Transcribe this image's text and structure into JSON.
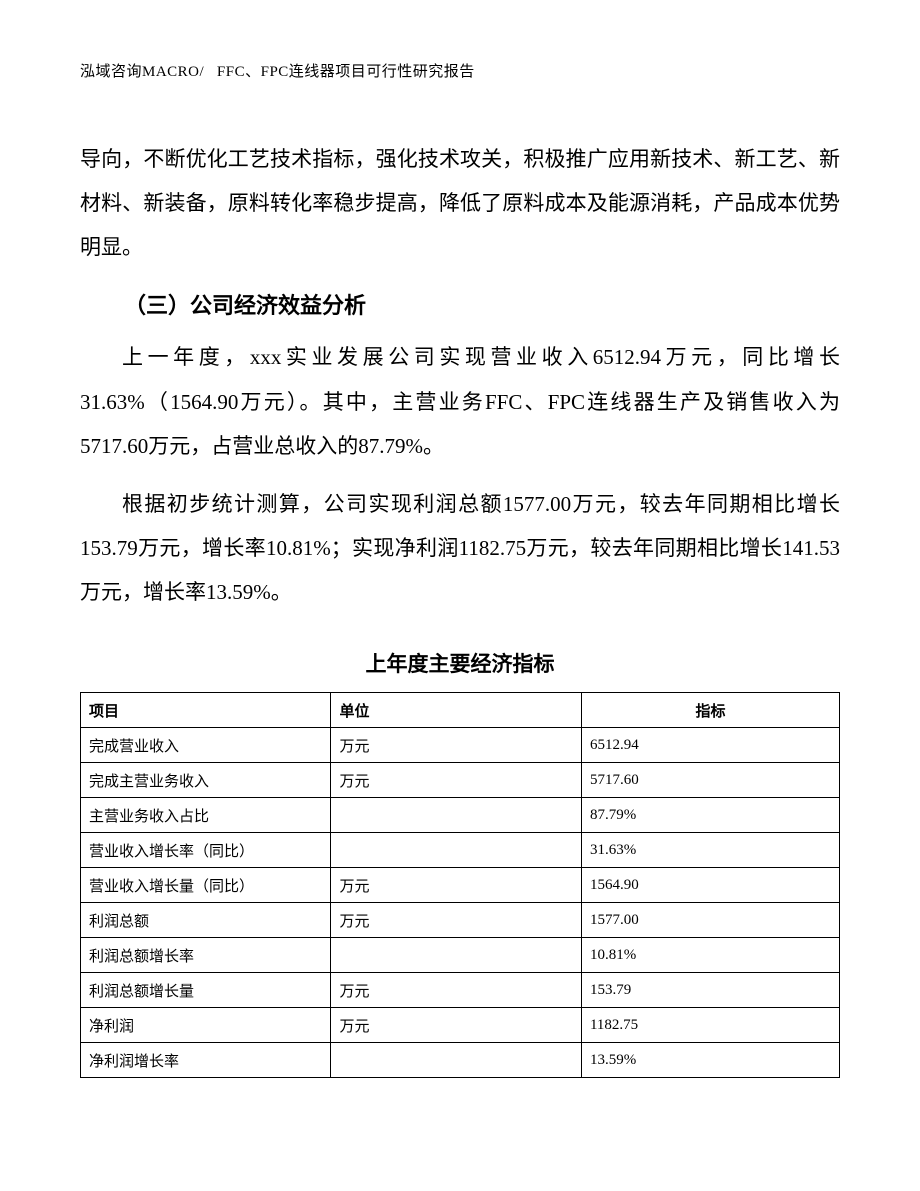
{
  "header": {
    "text": "泓域咨询MACRO/   FFC、FPC连线器项目可行性研究报告"
  },
  "paragraphs": {
    "p1": "导向，不断优化工艺技术指标，强化技术攻关，积极推广应用新技术、新工艺、新材料、新装备，原料转化率稳步提高，降低了原料成本及能源消耗，产品成本优势明显。",
    "heading": "（三）公司经济效益分析",
    "p2": "上一年度，xxx实业发展公司实现营业收入6512.94万元，同比增长31.63%（1564.90万元）。其中，主营业务FFC、FPC连线器生产及销售收入为5717.60万元，占营业总收入的87.79%。",
    "p3": "根据初步统计测算，公司实现利润总额1577.00万元，较去年同期相比增长153.79万元，增长率10.81%；实现净利润1182.75万元，较去年同期相比增长141.53万元，增长率13.59%。"
  },
  "table": {
    "title": "上年度主要经济指标",
    "columns": {
      "item": "项目",
      "unit": "单位",
      "indicator": "指标"
    },
    "rows": [
      {
        "item": "完成营业收入",
        "unit": "万元",
        "indicator": "6512.94"
      },
      {
        "item": "完成主营业务收入",
        "unit": "万元",
        "indicator": "5717.60"
      },
      {
        "item": "主营业务收入占比",
        "unit": "",
        "indicator": "87.79%"
      },
      {
        "item": "营业收入增长率（同比）",
        "unit": "",
        "indicator": "31.63%"
      },
      {
        "item": "营业收入增长量（同比）",
        "unit": "万元",
        "indicator": "1564.90"
      },
      {
        "item": "利润总额",
        "unit": "万元",
        "indicator": "1577.00"
      },
      {
        "item": "利润总额增长率",
        "unit": "",
        "indicator": "10.81%"
      },
      {
        "item": "利润总额增长量",
        "unit": "万元",
        "indicator": "153.79"
      },
      {
        "item": "净利润",
        "unit": "万元",
        "indicator": "1182.75"
      },
      {
        "item": "净利润增长率",
        "unit": "",
        "indicator": "13.59%"
      }
    ]
  }
}
